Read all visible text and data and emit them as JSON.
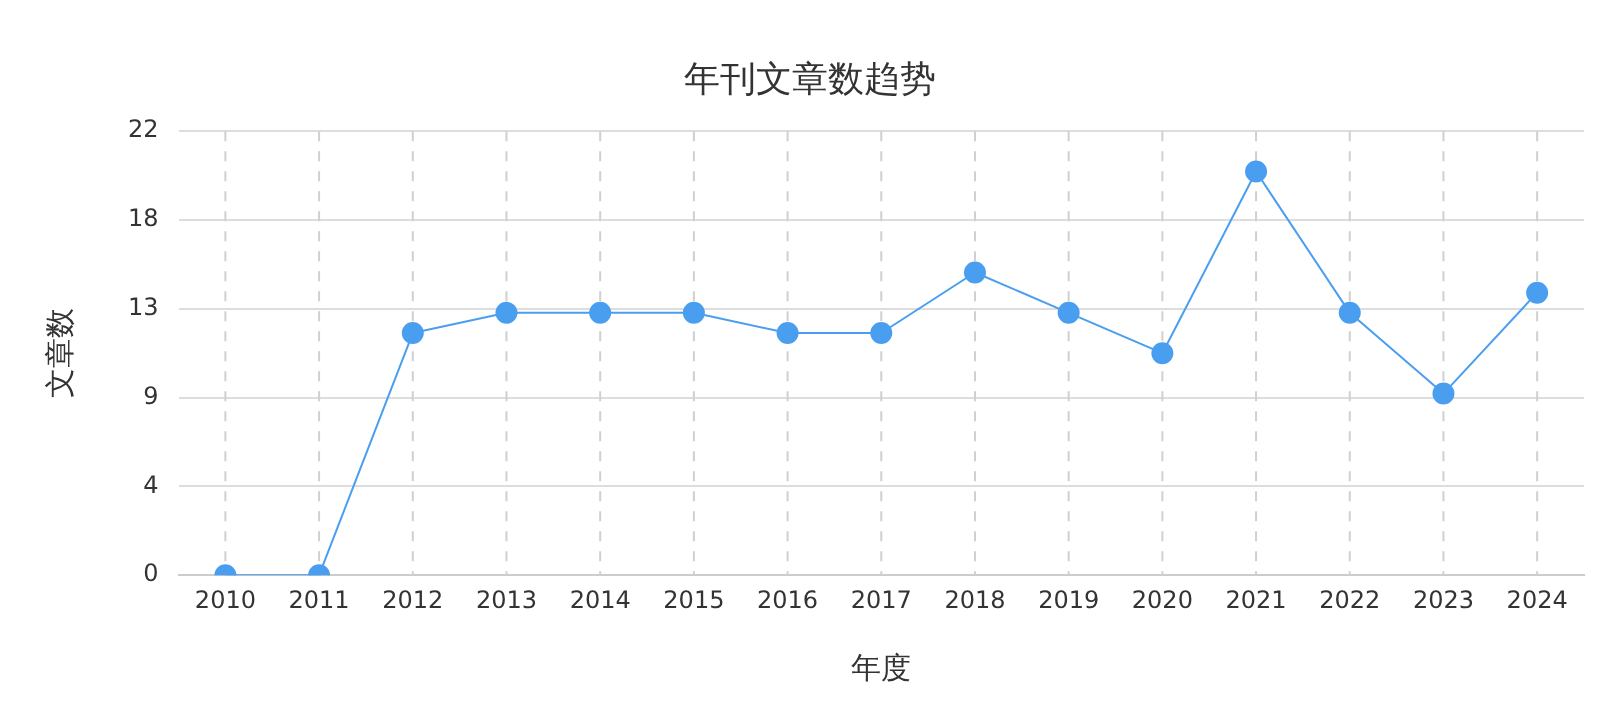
{
  "chart_data": {
    "type": "line",
    "title": "年刊文章数趋势",
    "xlabel": "年度",
    "ylabel": "文章数",
    "categories": [
      "2010",
      "2011",
      "2012",
      "2013",
      "2014",
      "2015",
      "2016",
      "2017",
      "2018",
      "2019",
      "2020",
      "2021",
      "2022",
      "2023",
      "2024"
    ],
    "series": [
      {
        "color": "#4a9ef0",
        "values": [
          0,
          0,
          12,
          13,
          13,
          13,
          12,
          12,
          15,
          13,
          11,
          20,
          13,
          9,
          14
        ]
      }
    ],
    "ylim": [
      0,
      22
    ],
    "yticks": [
      0,
      {
        "value": 4.4,
        "label": "4"
      },
      {
        "value": 8.8,
        "label": "9"
      },
      {
        "value": 13.2,
        "label": "13"
      },
      {
        "value": 17.6,
        "label": "18"
      },
      22
    ],
    "grid": true,
    "legend": false,
    "marker": "circle",
    "line_style": "solid"
  }
}
